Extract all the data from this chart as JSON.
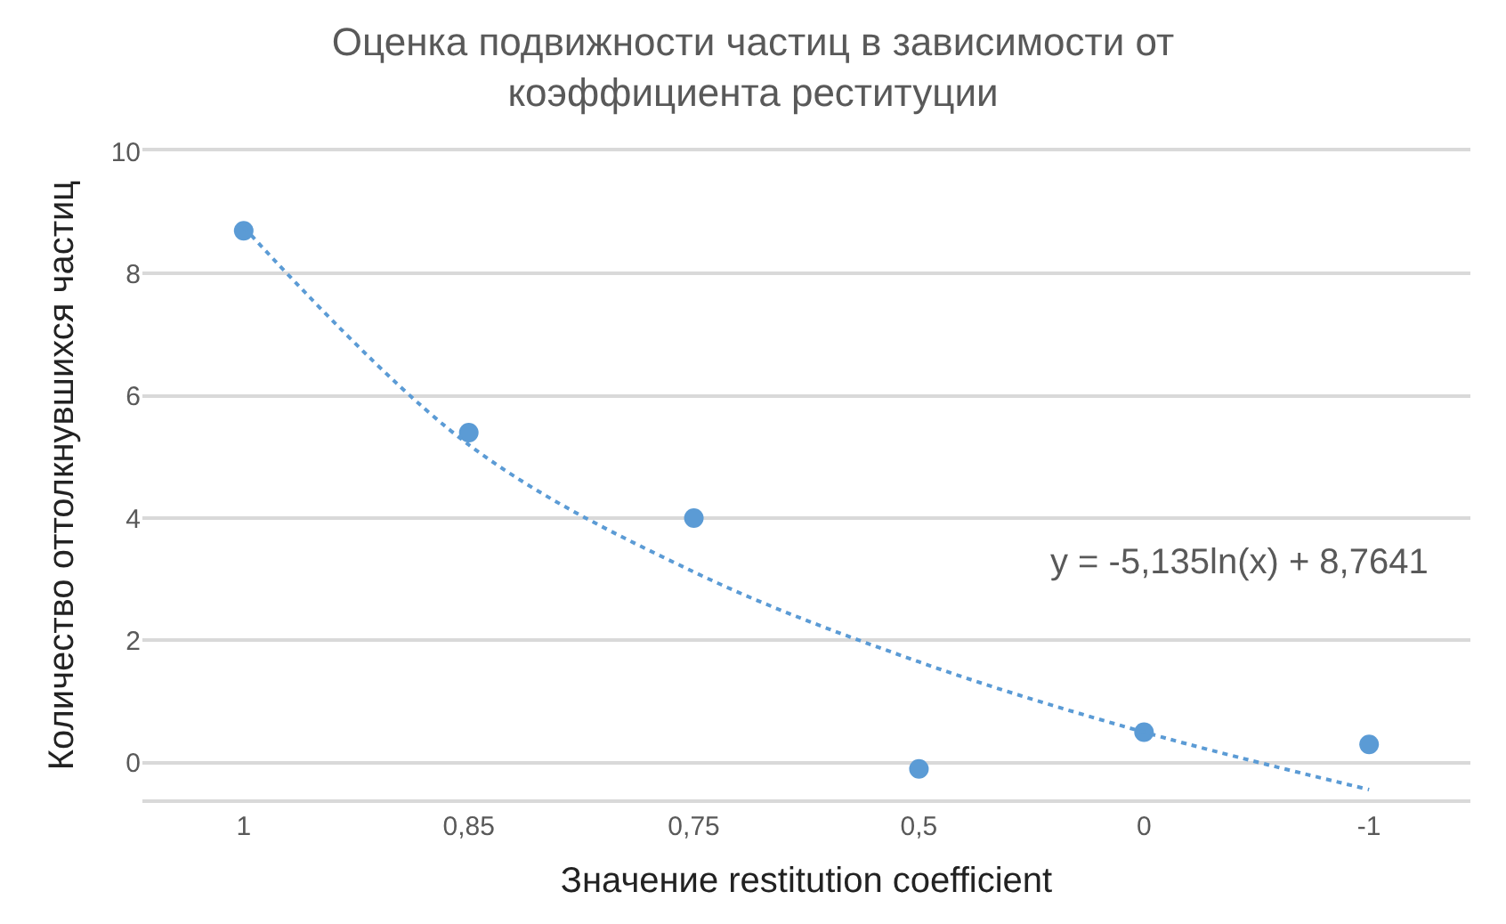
{
  "chart_data": {
    "type": "scatter",
    "title": "Оценка подвижности частиц в зависимости от коэффициента реституции",
    "xlabel": "Значение restitution coefficient",
    "ylabel": "Количество оттолкнувшихся частиц",
    "categories": [
      "1",
      "0,85",
      "0,75",
      "0,5",
      "0",
      "-1"
    ],
    "series": [
      {
        "color": "#5b9bd5",
        "values": [
          8.7,
          5.4,
          4.0,
          -0.1,
          0.5,
          0.3
        ],
        "marker": "circle"
      },
      {
        "type": "line",
        "color": "#5b9bd5",
        "values": [
          8.76,
          5.2,
          3.12,
          1.65,
          0.5,
          -0.44
        ],
        "line_style": "dotted",
        "marker": "none"
      }
    ],
    "annotations": [
      "y = -5,135ln(x) + 8,7641"
    ],
    "ylim": [
      -0.6,
      10
    ],
    "yticks": [
      0,
      2,
      4,
      6,
      8,
      10
    ],
    "grid": "y"
  }
}
